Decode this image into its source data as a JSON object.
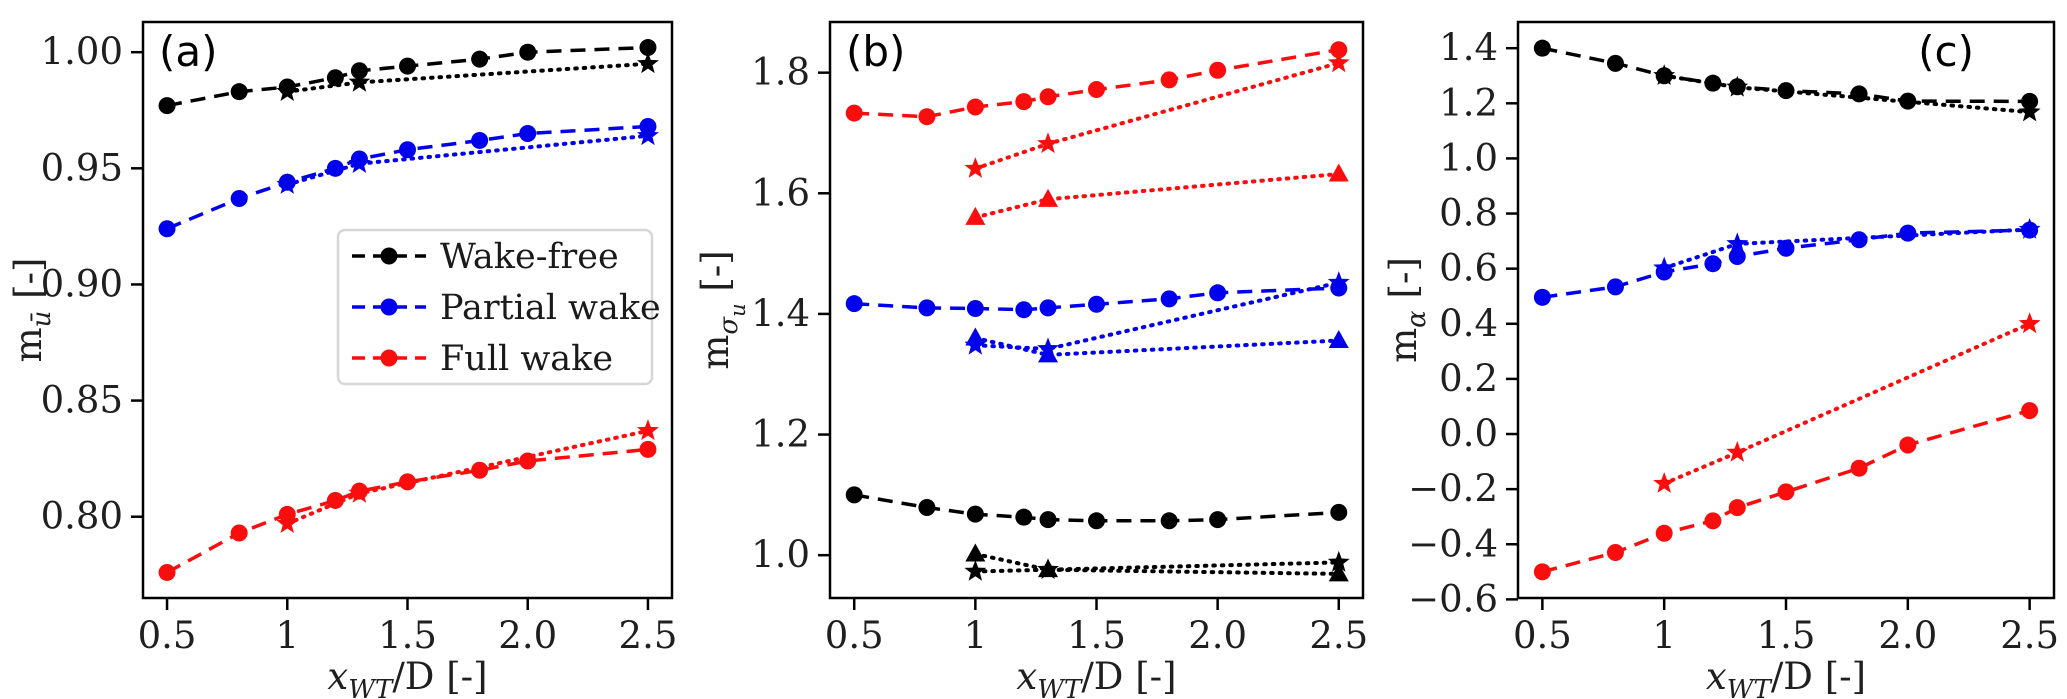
{
  "figure": {
    "background": "#ffffff",
    "colors": {
      "black": "#000000",
      "blue": "#0000ee",
      "red": "#fa0d0d"
    },
    "text_color": "#1f1f1f"
  },
  "legend": {
    "items": [
      {
        "label": "Wake-free",
        "color": "black"
      },
      {
        "label": "Partial wake",
        "color": "blue"
      },
      {
        "label": "Full wake",
        "color": "red"
      }
    ]
  },
  "chart_data": [
    {
      "type": "line",
      "panel_label": "(a)",
      "panel_label_align": "left",
      "show_legend": true,
      "xlabel_parts": [
        {
          "t": "x",
          "i": 1
        },
        {
          "t": "WT",
          "i": 1,
          "sub": 1
        },
        {
          "t": "/D [-]"
        }
      ],
      "ylabel_parts": [
        {
          "t": "m"
        },
        {
          "t": "ū",
          "i": 1,
          "sub": 1
        },
        {
          "t": " [-]"
        }
      ],
      "xlim": [
        0.4,
        2.6
      ],
      "ylim": [
        0.765,
        1.013
      ],
      "xticks": {
        "values": [
          0.5,
          1,
          1.5,
          2,
          2.5
        ],
        "labels": [
          "0.5",
          "1",
          "1.5",
          "2.0",
          "2.5"
        ]
      },
      "yticks": {
        "values": [
          0.8,
          0.85,
          0.9,
          0.95,
          1.0
        ],
        "labels": [
          "0.80",
          "0.85",
          "0.90",
          "0.95",
          "1.00"
        ]
      },
      "x": {
        "full": [
          0.5,
          0.8,
          1,
          1.2,
          1.3,
          1.5,
          1.8,
          2,
          2.5
        ],
        "sparse": [
          1,
          1.3,
          2.5
        ]
      },
      "series": [
        {
          "name": "wake-free-circles",
          "color": "black",
          "marker": "circle",
          "linestyle": "dashed",
          "x": "full",
          "y": [
            0.977,
            0.983,
            0.985,
            0.989,
            0.992,
            0.994,
            0.997,
            1.0,
            1.002
          ]
        },
        {
          "name": "wake-free-stars",
          "color": "black",
          "marker": "star",
          "linestyle": "dotted",
          "x": "sparse",
          "y": [
            0.983,
            0.987,
            0.995
          ]
        },
        {
          "name": "partial-circles",
          "color": "blue",
          "marker": "circle",
          "linestyle": "dashed",
          "x": "full",
          "y": [
            0.924,
            0.937,
            0.944,
            0.95,
            0.954,
            0.958,
            0.962,
            0.965,
            0.968
          ]
        },
        {
          "name": "partial-stars",
          "color": "blue",
          "marker": "star",
          "linestyle": "dotted",
          "x": "sparse",
          "y": [
            0.943,
            0.952,
            0.964
          ]
        },
        {
          "name": "full-circles",
          "color": "red",
          "marker": "circle",
          "linestyle": "dashed",
          "x": "full",
          "y": [
            0.776,
            0.793,
            0.801,
            0.807,
            0.811,
            0.815,
            0.82,
            0.824,
            0.829
          ]
        },
        {
          "name": "full-stars",
          "color": "red",
          "marker": "star",
          "linestyle": "dotted",
          "x": "sparse",
          "y": [
            0.797,
            0.81,
            0.837
          ]
        }
      ]
    },
    {
      "type": "line",
      "panel_label": "(b)",
      "panel_label_align": "left",
      "show_legend": false,
      "xlabel_parts": [
        {
          "t": "x",
          "i": 1
        },
        {
          "t": "WT",
          "i": 1,
          "sub": 1
        },
        {
          "t": "/D [-]"
        }
      ],
      "ylabel_parts": [
        {
          "t": "m"
        },
        {
          "t": "σ",
          "i": 1,
          "sub": 1
        },
        {
          "t": "u",
          "i": 1,
          "sub": 2
        },
        {
          "t": " [-]"
        }
      ],
      "xlim": [
        0.4,
        2.6
      ],
      "ylim": [
        0.929,
        1.884
      ],
      "xticks": {
        "values": [
          0.5,
          1,
          1.5,
          2,
          2.5
        ],
        "labels": [
          "0.5",
          "1",
          "1.5",
          "2.0",
          "2.5"
        ]
      },
      "yticks": {
        "values": [
          1.0,
          1.2,
          1.4,
          1.6,
          1.8
        ],
        "labels": [
          "1.0",
          "1.2",
          "1.4",
          "1.6",
          "1.8"
        ]
      },
      "x": {
        "full": [
          0.5,
          0.8,
          1,
          1.2,
          1.3,
          1.5,
          1.8,
          2,
          2.5
        ],
        "sparse": [
          1,
          1.3,
          2.5
        ]
      },
      "series": [
        {
          "name": "full-circles",
          "color": "red",
          "marker": "circle",
          "linestyle": "dashed",
          "x": "full",
          "y": [
            1.733,
            1.727,
            1.743,
            1.752,
            1.76,
            1.772,
            1.788,
            1.804,
            1.838
          ]
        },
        {
          "name": "full-stars",
          "color": "red",
          "marker": "star",
          "linestyle": "dotted",
          "x": "sparse",
          "y": [
            1.641,
            1.682,
            1.816
          ]
        },
        {
          "name": "full-triangles",
          "color": "red",
          "marker": "triangle",
          "linestyle": "dotted",
          "x": "sparse",
          "y": [
            1.56,
            1.59,
            1.632
          ]
        },
        {
          "name": "partial-circles",
          "color": "blue",
          "marker": "circle",
          "linestyle": "dashed",
          "x": "full",
          "y": [
            1.417,
            1.41,
            1.409,
            1.407,
            1.41,
            1.416,
            1.425,
            1.435,
            1.443
          ]
        },
        {
          "name": "partial-stars",
          "color": "blue",
          "marker": "star",
          "linestyle": "dotted",
          "x": "sparse",
          "y": [
            1.348,
            1.342,
            1.452
          ]
        },
        {
          "name": "partial-triangles",
          "color": "blue",
          "marker": "triangle",
          "linestyle": "dotted",
          "x": "sparse",
          "y": [
            1.36,
            1.332,
            1.356
          ]
        },
        {
          "name": "wake-free-circles",
          "color": "black",
          "marker": "circle",
          "linestyle": "dashed",
          "x": "full",
          "y": [
            1.1,
            1.079,
            1.068,
            1.063,
            1.059,
            1.057,
            1.057,
            1.059,
            1.071
          ]
        },
        {
          "name": "wake-free-triangles",
          "color": "black",
          "marker": "triangle",
          "linestyle": "dotted",
          "x": "sparse",
          "y": [
            1.002,
            0.976,
            0.969
          ]
        },
        {
          "name": "wake-free-stars",
          "color": "black",
          "marker": "star",
          "linestyle": "dotted",
          "x": "sparse",
          "y": [
            0.973,
            0.976,
            0.988
          ]
        }
      ]
    },
    {
      "type": "line",
      "panel_label": "(c)",
      "panel_label_align": "right",
      "show_legend": false,
      "xlabel_parts": [
        {
          "t": "x",
          "i": 1
        },
        {
          "t": "WT",
          "i": 1,
          "sub": 1
        },
        {
          "t": "/D [-]"
        }
      ],
      "ylabel_parts": [
        {
          "t": "m"
        },
        {
          "t": "α",
          "i": 1,
          "sub": 1
        },
        {
          "t": " [-]"
        }
      ],
      "xlim": [
        0.4,
        2.6
      ],
      "ylim": [
        -0.595,
        1.495
      ],
      "xticks": {
        "values": [
          0.5,
          1,
          1.5,
          2,
          2.5
        ],
        "labels": [
          "0.5",
          "1",
          "1.5",
          "2.0",
          "2.5"
        ]
      },
      "yticks": {
        "values": [
          -0.6,
          -0.4,
          -0.2,
          0.0,
          0.2,
          0.4,
          0.6,
          0.8,
          1.0,
          1.2,
          1.4
        ],
        "labels": [
          "−0.6",
          "−0.4",
          "−0.2",
          "0.0",
          "0.2",
          "0.4",
          "0.6",
          "0.8",
          "1.0",
          "1.2",
          "1.4"
        ]
      },
      "x": {
        "full": [
          0.5,
          0.8,
          1,
          1.2,
          1.3,
          1.5,
          1.8,
          2,
          2.5
        ],
        "sparse": [
          1,
          1.3,
          2.5
        ]
      },
      "series": [
        {
          "name": "wake-free-circles",
          "color": "black",
          "marker": "circle",
          "linestyle": "dashed",
          "x": "full",
          "y": [
            1.4,
            1.345,
            1.3,
            1.273,
            1.26,
            1.246,
            1.234,
            1.208,
            1.207
          ]
        },
        {
          "name": "wake-free-stars",
          "color": "black",
          "marker": "star",
          "linestyle": "dotted",
          "x": "sparse",
          "y": [
            1.3,
            1.258,
            1.168
          ]
        },
        {
          "name": "partial-circles",
          "color": "blue",
          "marker": "circle",
          "linestyle": "dashed",
          "x": "full",
          "y": [
            0.496,
            0.534,
            0.588,
            0.618,
            0.644,
            0.674,
            0.705,
            0.729,
            0.74
          ]
        },
        {
          "name": "partial-stars",
          "color": "blue",
          "marker": "star",
          "linestyle": "dotted",
          "x": "sparse",
          "y": [
            0.602,
            0.69,
            0.742
          ]
        },
        {
          "name": "full-circles",
          "color": "red",
          "marker": "circle",
          "linestyle": "dashed",
          "x": "full",
          "y": [
            -0.5,
            -0.43,
            -0.36,
            -0.315,
            -0.267,
            -0.21,
            -0.124,
            -0.04,
            0.085
          ]
        },
        {
          "name": "full-stars",
          "color": "red",
          "marker": "star",
          "linestyle": "dotted",
          "x": "sparse",
          "y": [
            -0.18,
            -0.067,
            0.4
          ]
        }
      ]
    }
  ]
}
